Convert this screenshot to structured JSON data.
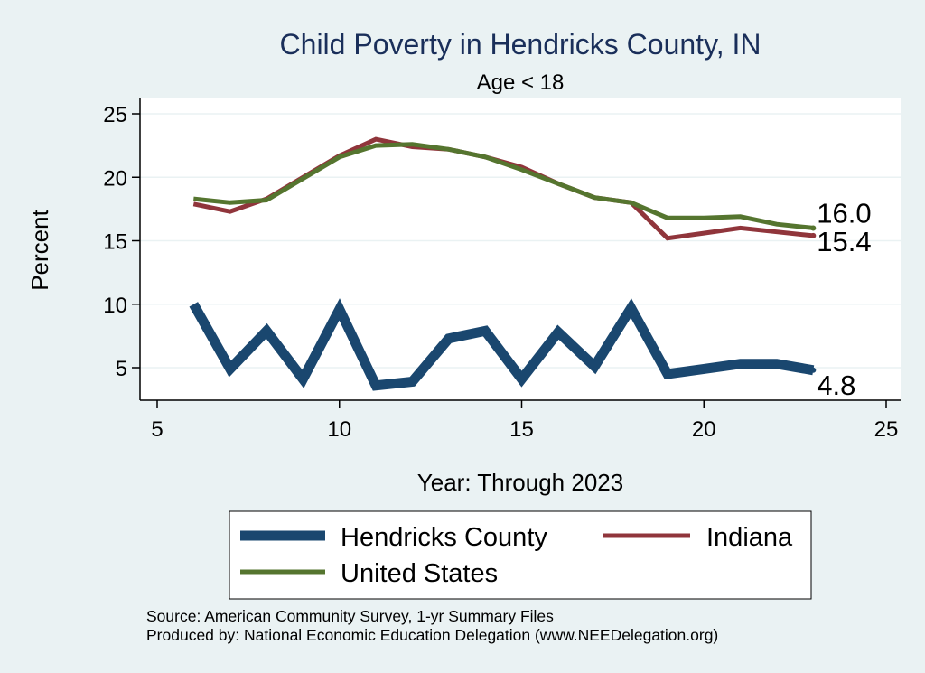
{
  "chart_data": {
    "type": "line",
    "title": "Child Poverty in Hendricks County, IN",
    "subtitle": "Age < 18",
    "xlabel": "Year: Through 2023",
    "ylabel": "Percent",
    "xlim": [
      5,
      25
    ],
    "ylim": [
      2.5,
      25.5
    ],
    "xticks": [
      5,
      10,
      15,
      20,
      25
    ],
    "yticks": [
      5,
      10,
      15,
      20,
      25
    ],
    "grid": true,
    "legend_position": "bottom",
    "series": [
      {
        "name": "Hendricks County",
        "color": "#1a476f",
        "x": [
          6,
          7,
          8,
          9,
          10,
          11,
          12,
          13,
          14,
          15,
          16,
          17,
          18,
          19,
          20,
          21,
          22,
          23
        ],
        "values": [
          10.0,
          4.9,
          7.9,
          4.1,
          9.6,
          3.6,
          3.9,
          7.3,
          7.9,
          4.1,
          7.8,
          5.1,
          9.7,
          4.5,
          4.9,
          5.3,
          5.3,
          4.8
        ],
        "end_label": "4.8"
      },
      {
        "name": "Indiana",
        "color": "#90353b",
        "x": [
          6,
          7,
          8,
          9,
          10,
          11,
          12,
          13,
          14,
          15,
          16,
          17,
          18,
          19,
          20,
          21,
          22,
          23
        ],
        "values": [
          17.9,
          17.3,
          18.3,
          20.0,
          21.7,
          23.0,
          22.4,
          22.2,
          21.6,
          20.8,
          19.5,
          18.4,
          18.0,
          15.2,
          15.6,
          16.0,
          15.7,
          15.4
        ],
        "end_label": "15.4"
      },
      {
        "name": "United States",
        "color": "#55752f",
        "x": [
          6,
          7,
          8,
          9,
          10,
          11,
          12,
          13,
          14,
          15,
          16,
          17,
          18,
          19,
          20,
          21,
          22,
          23
        ],
        "values": [
          18.3,
          18.0,
          18.2,
          19.9,
          21.6,
          22.5,
          22.6,
          22.2,
          21.6,
          20.6,
          19.5,
          18.4,
          18.0,
          16.8,
          16.8,
          16.9,
          16.3,
          16.0
        ],
        "end_label": "16.0"
      }
    ],
    "source_lines": [
      "Source: American Community Survey, 1-yr Summary Files",
      "Produced by: National Economic Education Delegation (www.NEEDelegation.org)"
    ]
  }
}
